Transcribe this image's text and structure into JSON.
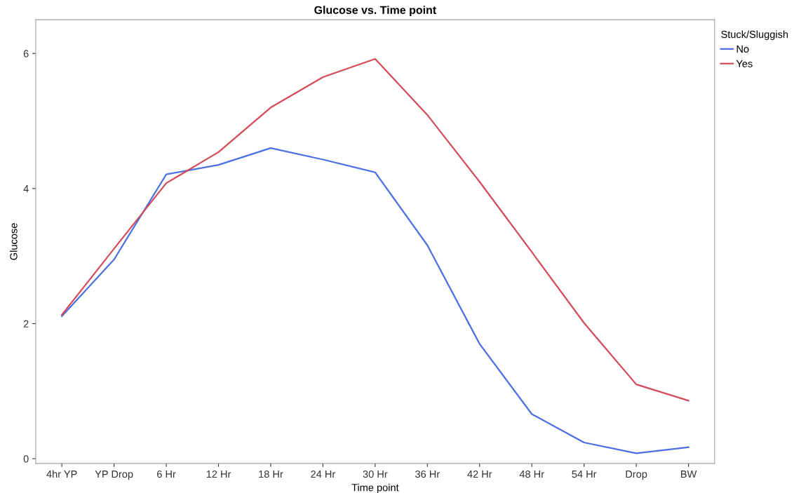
{
  "chart_data": {
    "type": "line",
    "title": "Glucose vs. Time point",
    "xlabel": "Time point",
    "ylabel": "Glucose",
    "legend_title": "Stuck/Sluggish",
    "categories": [
      "4hr YP",
      "YP Drop",
      "6 Hr",
      "12 Hr",
      "18 Hr",
      "24 Hr",
      "30 Hr",
      "36 Hr",
      "42 Hr",
      "48 Hr",
      "54 Hr",
      "Drop",
      "BW"
    ],
    "series": [
      {
        "name": "No",
        "color": "#4a6fe3",
        "values": [
          2.11,
          2.95,
          4.21,
          4.35,
          4.6,
          4.43,
          4.24,
          3.16,
          1.7,
          0.66,
          0.24,
          0.08,
          0.17
        ]
      },
      {
        "name": "Yes",
        "color": "#d44a5a",
        "values": [
          2.13,
          3.11,
          4.08,
          4.54,
          5.2,
          5.65,
          5.92,
          5.09,
          4.1,
          3.06,
          2.01,
          1.1,
          0.86
        ]
      }
    ],
    "ylim": [
      -0.07,
      6.5
    ],
    "yticks": [
      0,
      2,
      4,
      6
    ],
    "legend": "top right",
    "grid": false
  }
}
